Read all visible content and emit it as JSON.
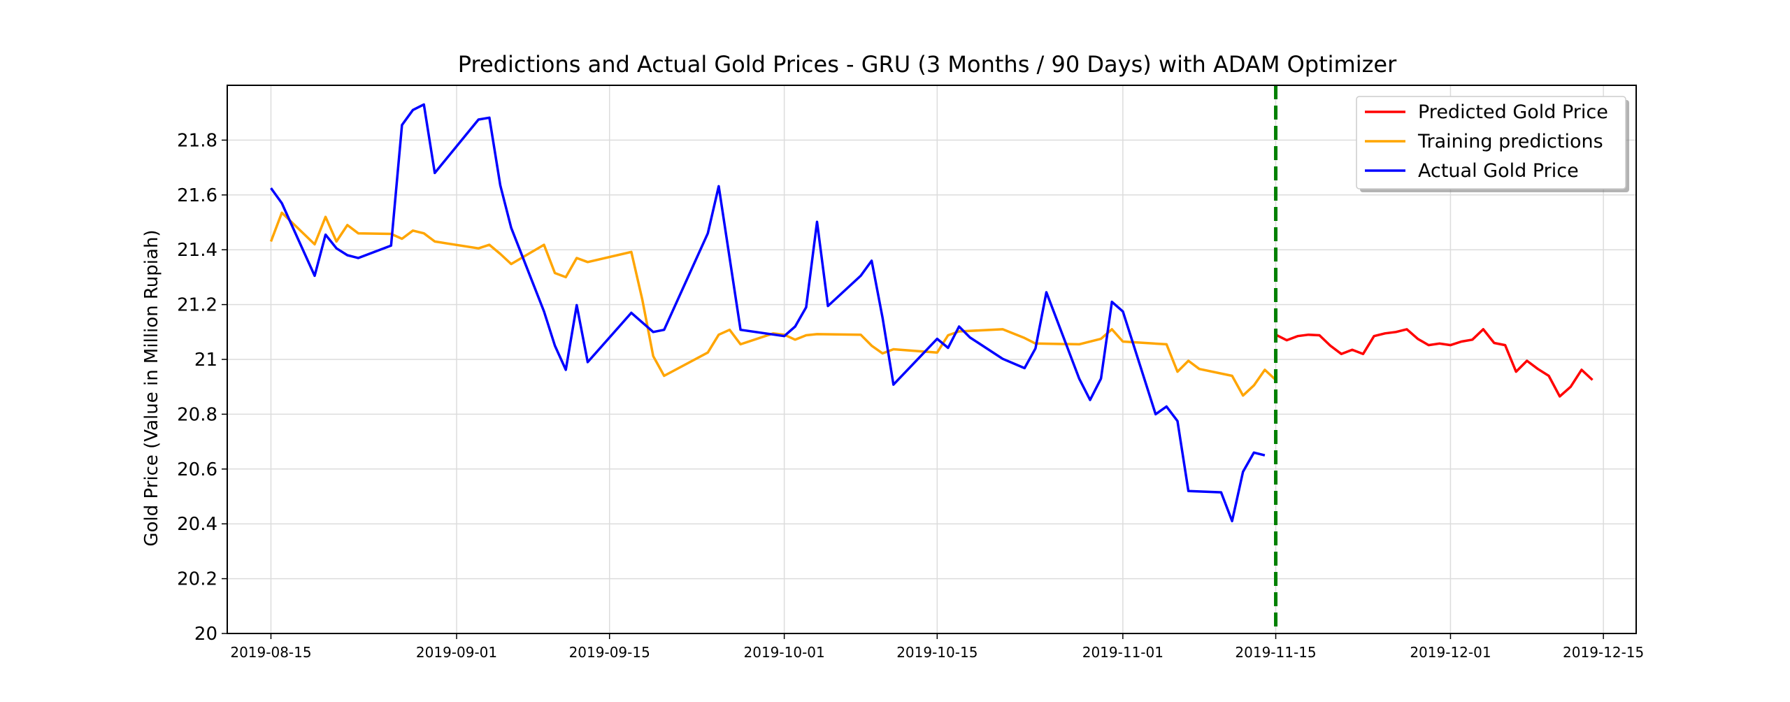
{
  "chart_data": {
    "type": "line",
    "title": "Predictions and Actual Gold Prices - GRU (3 Months / 90 Days) with ADAM Optimizer",
    "xlabel": "",
    "ylabel": "Gold Price (Value in Million Rupiah)",
    "x_axis_type": "date",
    "xlim": [
      "2019-08-11",
      "2019-12-18"
    ],
    "ylim": [
      20.0,
      22.0
    ],
    "x_ticks": [
      "2019-08-15",
      "2019-09-01",
      "2019-09-15",
      "2019-10-01",
      "2019-10-15",
      "2019-11-01",
      "2019-11-15",
      "2019-12-01",
      "2019-12-15"
    ],
    "y_ticks": [
      20,
      20.2,
      20.4,
      20.6,
      20.8,
      21,
      21.2,
      21.4,
      21.6,
      21.8
    ],
    "y_tick_labels": [
      "20",
      "20.2",
      "20.4",
      "20.6",
      "20.8",
      "21",
      "21.2",
      "21.4",
      "21.6",
      "21.8"
    ],
    "grid": true,
    "legend_position": "top-right",
    "vertical_line": {
      "x": "2019-11-15",
      "color": "#008000",
      "style": "dashed"
    },
    "series": [
      {
        "name": "Predicted Gold Price",
        "color": "#ff0000",
        "points": [
          [
            "2019-11-15",
            21.09
          ],
          [
            "2019-11-16",
            21.07
          ],
          [
            "2019-11-17",
            21.085
          ],
          [
            "2019-11-18",
            21.09
          ],
          [
            "2019-11-19",
            21.088
          ],
          [
            "2019-11-20",
            21.05
          ],
          [
            "2019-11-21",
            21.02
          ],
          [
            "2019-11-22",
            21.035
          ],
          [
            "2019-11-23",
            21.02
          ],
          [
            "2019-11-24",
            21.085
          ],
          [
            "2019-11-25",
            21.095
          ],
          [
            "2019-11-26",
            21.1
          ],
          [
            "2019-11-27",
            21.11
          ],
          [
            "2019-11-28",
            21.075
          ],
          [
            "2019-11-29",
            21.052
          ],
          [
            "2019-11-30",
            21.058
          ],
          [
            "2019-12-01",
            21.052
          ],
          [
            "2019-12-02",
            21.065
          ],
          [
            "2019-12-03",
            21.072
          ],
          [
            "2019-12-04",
            21.11
          ],
          [
            "2019-12-05",
            21.06
          ],
          [
            "2019-12-06",
            21.052
          ],
          [
            "2019-12-07",
            20.955
          ],
          [
            "2019-12-08",
            20.995
          ],
          [
            "2019-12-09",
            20.965
          ],
          [
            "2019-12-10",
            20.94
          ],
          [
            "2019-12-11",
            20.865
          ],
          [
            "2019-12-12",
            20.9
          ],
          [
            "2019-12-13",
            20.962
          ],
          [
            "2019-12-14",
            20.925
          ]
        ]
      },
      {
        "name": "Training predictions",
        "color": "#ffa500",
        "points": [
          [
            "2019-08-15",
            21.43
          ],
          [
            "2019-08-16",
            21.535
          ],
          [
            "2019-08-19",
            21.42
          ],
          [
            "2019-08-20",
            21.52
          ],
          [
            "2019-08-21",
            21.43
          ],
          [
            "2019-08-22",
            21.49
          ],
          [
            "2019-08-23",
            21.46
          ],
          [
            "2019-08-26",
            21.458
          ],
          [
            "2019-08-27",
            21.44
          ],
          [
            "2019-08-28",
            21.47
          ],
          [
            "2019-08-29",
            21.46
          ],
          [
            "2019-08-30",
            21.43
          ],
          [
            "2019-09-03",
            21.405
          ],
          [
            "2019-09-04",
            21.418
          ],
          [
            "2019-09-05",
            21.385
          ],
          [
            "2019-09-06",
            21.348
          ],
          [
            "2019-09-09",
            21.418
          ],
          [
            "2019-09-10",
            21.315
          ],
          [
            "2019-09-11",
            21.3
          ],
          [
            "2019-09-12",
            21.37
          ],
          [
            "2019-09-13",
            21.355
          ],
          [
            "2019-09-17",
            21.392
          ],
          [
            "2019-09-18",
            21.218
          ],
          [
            "2019-09-19",
            21.012
          ],
          [
            "2019-09-20",
            20.94
          ],
          [
            "2019-09-24",
            21.025
          ],
          [
            "2019-09-25",
            21.09
          ],
          [
            "2019-09-26",
            21.108
          ],
          [
            "2019-09-27",
            21.055
          ],
          [
            "2019-09-30",
            21.095
          ],
          [
            "2019-10-01",
            21.09
          ],
          [
            "2019-10-02",
            21.072
          ],
          [
            "2019-10-03",
            21.088
          ],
          [
            "2019-10-04",
            21.092
          ],
          [
            "2019-10-08",
            21.09
          ],
          [
            "2019-10-09",
            21.05
          ],
          [
            "2019-10-10",
            21.022
          ],
          [
            "2019-10-11",
            21.037
          ],
          [
            "2019-10-15",
            21.025
          ],
          [
            "2019-10-16",
            21.088
          ],
          [
            "2019-10-17",
            21.102
          ],
          [
            "2019-10-21",
            21.11
          ],
          [
            "2019-10-23",
            21.078
          ],
          [
            "2019-10-24",
            21.058
          ],
          [
            "2019-10-28",
            21.055
          ],
          [
            "2019-10-30",
            21.075
          ],
          [
            "2019-10-31",
            21.11
          ],
          [
            "2019-11-01",
            21.065
          ],
          [
            "2019-11-05",
            21.055
          ],
          [
            "2019-11-06",
            20.955
          ],
          [
            "2019-11-07",
            20.995
          ],
          [
            "2019-11-08",
            20.965
          ],
          [
            "2019-11-11",
            20.94
          ],
          [
            "2019-11-12",
            20.868
          ],
          [
            "2019-11-13",
            20.905
          ],
          [
            "2019-11-14",
            20.962
          ],
          [
            "2019-11-15",
            20.925
          ]
        ]
      },
      {
        "name": "Actual Gold Price",
        "color": "#0000ff",
        "points": [
          [
            "2019-08-15",
            21.625
          ],
          [
            "2019-08-16",
            21.57
          ],
          [
            "2019-08-19",
            21.305
          ],
          [
            "2019-08-20",
            21.455
          ],
          [
            "2019-08-21",
            21.405
          ],
          [
            "2019-08-22",
            21.38
          ],
          [
            "2019-08-23",
            21.37
          ],
          [
            "2019-08-26",
            21.415
          ],
          [
            "2019-08-27",
            21.855
          ],
          [
            "2019-08-28",
            21.91
          ],
          [
            "2019-08-29",
            21.93
          ],
          [
            "2019-08-30",
            21.68
          ],
          [
            "2019-09-03",
            21.875
          ],
          [
            "2019-09-04",
            21.882
          ],
          [
            "2019-09-05",
            21.635
          ],
          [
            "2019-09-06",
            21.48
          ],
          [
            "2019-09-09",
            21.175
          ],
          [
            "2019-09-10",
            21.05
          ],
          [
            "2019-09-11",
            20.962
          ],
          [
            "2019-09-12",
            21.198
          ],
          [
            "2019-09-13",
            20.99
          ],
          [
            "2019-09-17",
            21.17
          ],
          [
            "2019-09-19",
            21.1
          ],
          [
            "2019-09-20",
            21.108
          ],
          [
            "2019-09-24",
            21.46
          ],
          [
            "2019-09-25",
            21.632
          ],
          [
            "2019-09-27",
            21.108
          ],
          [
            "2019-10-01",
            21.085
          ],
          [
            "2019-10-02",
            21.12
          ],
          [
            "2019-10-03",
            21.19
          ],
          [
            "2019-10-04",
            21.502
          ],
          [
            "2019-10-05",
            21.195
          ],
          [
            "2019-10-08",
            21.305
          ],
          [
            "2019-10-09",
            21.36
          ],
          [
            "2019-10-10",
            21.152
          ],
          [
            "2019-10-11",
            20.908
          ],
          [
            "2019-10-15",
            21.075
          ],
          [
            "2019-10-16",
            21.042
          ],
          [
            "2019-10-17",
            21.12
          ],
          [
            "2019-10-18",
            21.08
          ],
          [
            "2019-10-21",
            21.002
          ],
          [
            "2019-10-23",
            20.968
          ],
          [
            "2019-10-24",
            21.04
          ],
          [
            "2019-10-25",
            21.245
          ],
          [
            "2019-10-28",
            20.93
          ],
          [
            "2019-10-29",
            20.852
          ],
          [
            "2019-10-30",
            20.93
          ],
          [
            "2019-10-31",
            21.21
          ],
          [
            "2019-11-01",
            21.175
          ],
          [
            "2019-11-04",
            20.8
          ],
          [
            "2019-11-05",
            20.828
          ],
          [
            "2019-11-06",
            20.775
          ],
          [
            "2019-11-07",
            20.52
          ],
          [
            "2019-11-10",
            20.515
          ],
          [
            "2019-11-11",
            20.41
          ],
          [
            "2019-11-12",
            20.59
          ],
          [
            "2019-11-13",
            20.66
          ],
          [
            "2019-11-14",
            20.65
          ]
        ]
      }
    ]
  }
}
